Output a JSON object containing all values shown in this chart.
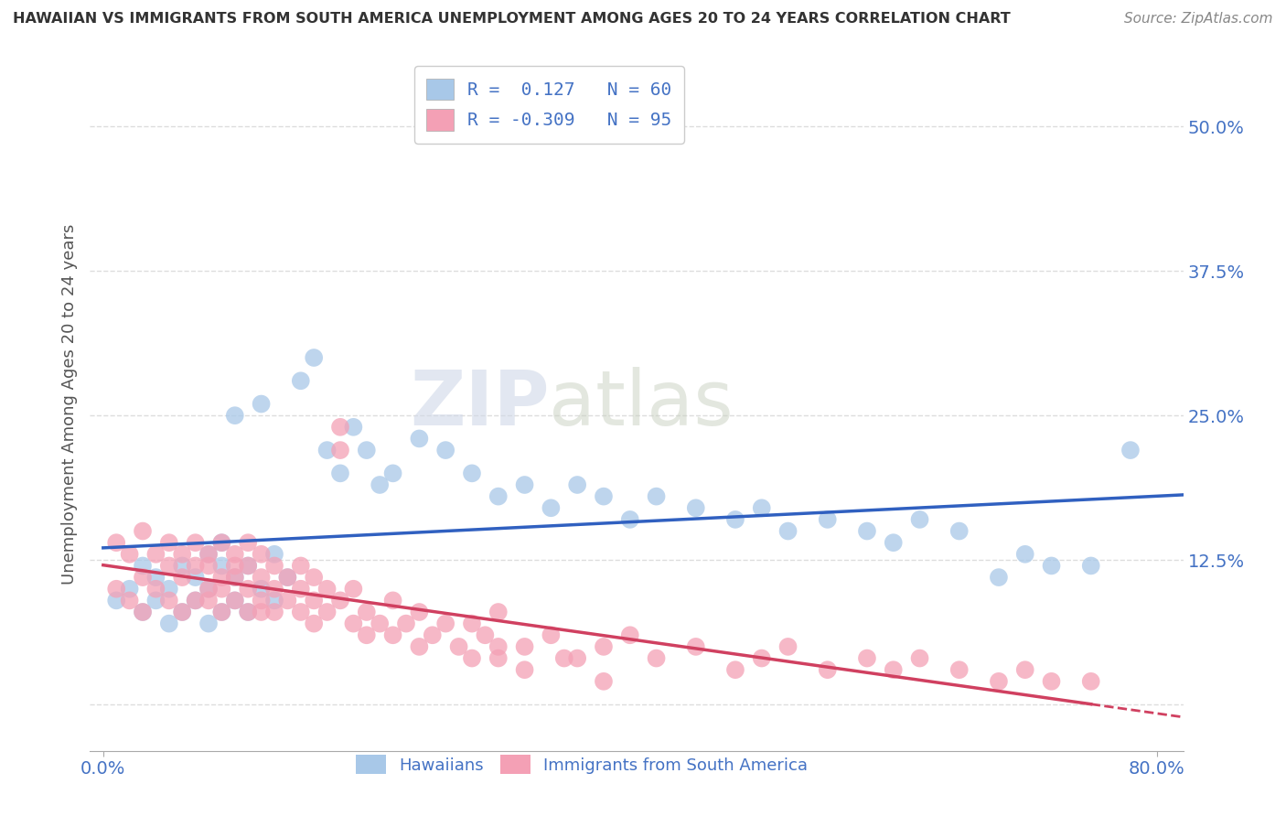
{
  "title": "HAWAIIAN VS IMMIGRANTS FROM SOUTH AMERICA UNEMPLOYMENT AMONG AGES 20 TO 24 YEARS CORRELATION CHART",
  "source": "Source: ZipAtlas.com",
  "ylabel": "Unemployment Among Ages 20 to 24 years",
  "y_ticks": [
    0.0,
    0.125,
    0.25,
    0.375,
    0.5
  ],
  "y_tick_labels": [
    "",
    "12.5%",
    "25.0%",
    "37.5%",
    "50.0%"
  ],
  "x_lim": [
    -0.01,
    0.82
  ],
  "y_lim": [
    -0.04,
    0.56
  ],
  "hawaiians_R": 0.127,
  "hawaiians_N": 60,
  "south_america_R": -0.309,
  "south_america_N": 95,
  "hawaiians_color": "#a8c8e8",
  "south_america_color": "#f4a0b5",
  "hawaiians_line_color": "#3060c0",
  "south_america_line_color": "#d04060",
  "legend_label_1": "Hawaiians",
  "legend_label_2": "Immigrants from South America",
  "watermark_zip": "ZIP",
  "watermark_atlas": "atlas",
  "background_color": "#ffffff",
  "grid_color": "#dddddd",
  "hawaiians_x": [
    0.01,
    0.02,
    0.03,
    0.03,
    0.04,
    0.04,
    0.05,
    0.05,
    0.06,
    0.06,
    0.07,
    0.07,
    0.08,
    0.08,
    0.08,
    0.09,
    0.09,
    0.09,
    0.1,
    0.1,
    0.1,
    0.11,
    0.11,
    0.12,
    0.12,
    0.13,
    0.13,
    0.14,
    0.15,
    0.16,
    0.17,
    0.18,
    0.19,
    0.2,
    0.21,
    0.22,
    0.24,
    0.26,
    0.28,
    0.3,
    0.32,
    0.34,
    0.36,
    0.38,
    0.4,
    0.42,
    0.45,
    0.48,
    0.5,
    0.52,
    0.55,
    0.58,
    0.6,
    0.62,
    0.65,
    0.68,
    0.7,
    0.72,
    0.75,
    0.78
  ],
  "hawaiians_y": [
    0.09,
    0.1,
    0.08,
    0.12,
    0.09,
    0.11,
    0.07,
    0.1,
    0.08,
    0.12,
    0.09,
    0.11,
    0.07,
    0.1,
    0.13,
    0.08,
    0.12,
    0.14,
    0.09,
    0.11,
    0.25,
    0.08,
    0.12,
    0.1,
    0.26,
    0.09,
    0.13,
    0.11,
    0.28,
    0.3,
    0.22,
    0.2,
    0.24,
    0.22,
    0.19,
    0.2,
    0.23,
    0.22,
    0.2,
    0.18,
    0.19,
    0.17,
    0.19,
    0.18,
    0.16,
    0.18,
    0.17,
    0.16,
    0.17,
    0.15,
    0.16,
    0.15,
    0.14,
    0.16,
    0.15,
    0.11,
    0.13,
    0.12,
    0.12,
    0.22
  ],
  "south_america_x": [
    0.01,
    0.01,
    0.02,
    0.02,
    0.03,
    0.03,
    0.03,
    0.04,
    0.04,
    0.05,
    0.05,
    0.05,
    0.06,
    0.06,
    0.06,
    0.07,
    0.07,
    0.07,
    0.08,
    0.08,
    0.08,
    0.08,
    0.09,
    0.09,
    0.09,
    0.09,
    0.1,
    0.1,
    0.1,
    0.1,
    0.11,
    0.11,
    0.11,
    0.11,
    0.12,
    0.12,
    0.12,
    0.12,
    0.13,
    0.13,
    0.13,
    0.14,
    0.14,
    0.15,
    0.15,
    0.15,
    0.16,
    0.16,
    0.16,
    0.17,
    0.17,
    0.18,
    0.18,
    0.18,
    0.19,
    0.19,
    0.2,
    0.2,
    0.21,
    0.22,
    0.22,
    0.23,
    0.24,
    0.24,
    0.25,
    0.26,
    0.27,
    0.28,
    0.29,
    0.3,
    0.3,
    0.32,
    0.34,
    0.36,
    0.38,
    0.4,
    0.42,
    0.45,
    0.48,
    0.5,
    0.52,
    0.55,
    0.58,
    0.6,
    0.62,
    0.65,
    0.68,
    0.7,
    0.72,
    0.75,
    0.28,
    0.3,
    0.32,
    0.35,
    0.38
  ],
  "south_america_y": [
    0.14,
    0.1,
    0.13,
    0.09,
    0.15,
    0.11,
    0.08,
    0.13,
    0.1,
    0.12,
    0.09,
    0.14,
    0.11,
    0.08,
    0.13,
    0.12,
    0.09,
    0.14,
    0.1,
    0.12,
    0.09,
    0.13,
    0.11,
    0.08,
    0.14,
    0.1,
    0.12,
    0.09,
    0.13,
    0.11,
    0.08,
    0.14,
    0.1,
    0.12,
    0.09,
    0.11,
    0.08,
    0.13,
    0.1,
    0.12,
    0.08,
    0.09,
    0.11,
    0.1,
    0.08,
    0.12,
    0.09,
    0.11,
    0.07,
    0.1,
    0.08,
    0.22,
    0.24,
    0.09,
    0.07,
    0.1,
    0.08,
    0.06,
    0.07,
    0.09,
    0.06,
    0.07,
    0.05,
    0.08,
    0.06,
    0.07,
    0.05,
    0.07,
    0.06,
    0.04,
    0.08,
    0.05,
    0.06,
    0.04,
    0.05,
    0.06,
    0.04,
    0.05,
    0.03,
    0.04,
    0.05,
    0.03,
    0.04,
    0.03,
    0.04,
    0.03,
    0.02,
    0.03,
    0.02,
    0.02,
    0.04,
    0.05,
    0.03,
    0.04,
    0.02
  ]
}
